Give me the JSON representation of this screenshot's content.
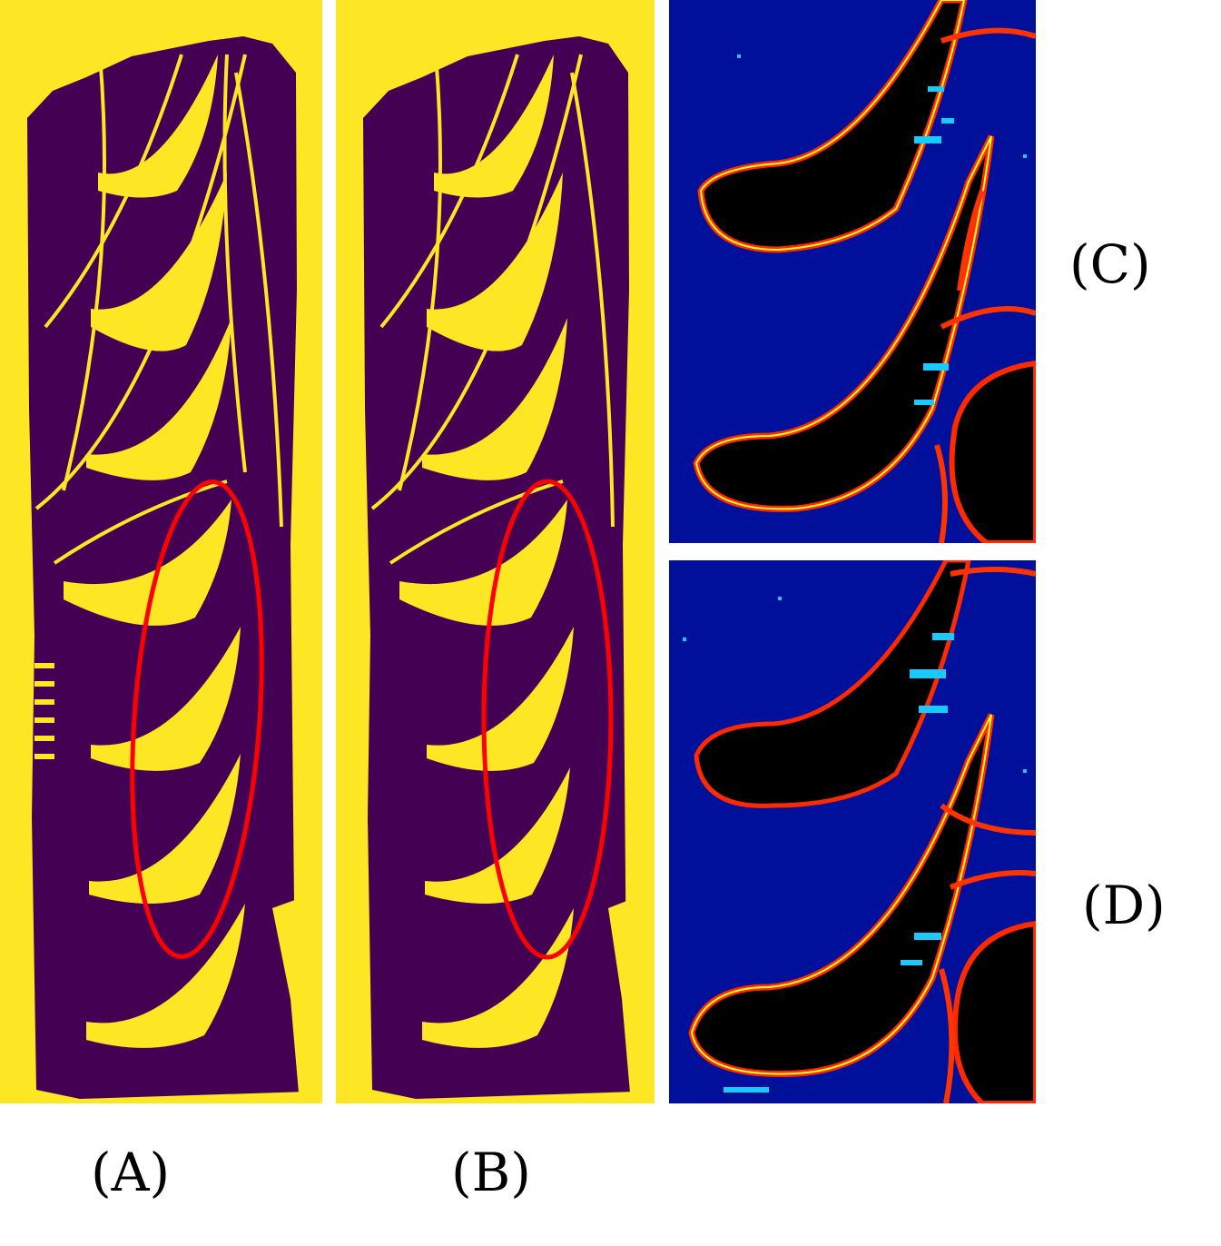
{
  "colors": {
    "binary_foreground": "#fde725",
    "binary_background": "#440154",
    "highlight_ellipse": "#ff0000",
    "heatmap_background": "#00109a",
    "heatmap_void": "#000000",
    "heatmap_edge_outer": "#ff2a00",
    "heatmap_edge_mid": "#ff8c00",
    "heatmap_edge_inner": "#ffff33",
    "heatmap_noise": "#19c9ff"
  },
  "panels": {
    "a": {
      "label": "(A)",
      "type": "binary-segmentation-map",
      "highlight": "red-ellipse"
    },
    "b": {
      "label": "(B)",
      "type": "binary-segmentation-map",
      "highlight": "red-ellipse"
    },
    "c": {
      "label": "(C)",
      "type": "heatmap-crop"
    },
    "d": {
      "label": "(D)",
      "type": "heatmap-crop"
    }
  }
}
